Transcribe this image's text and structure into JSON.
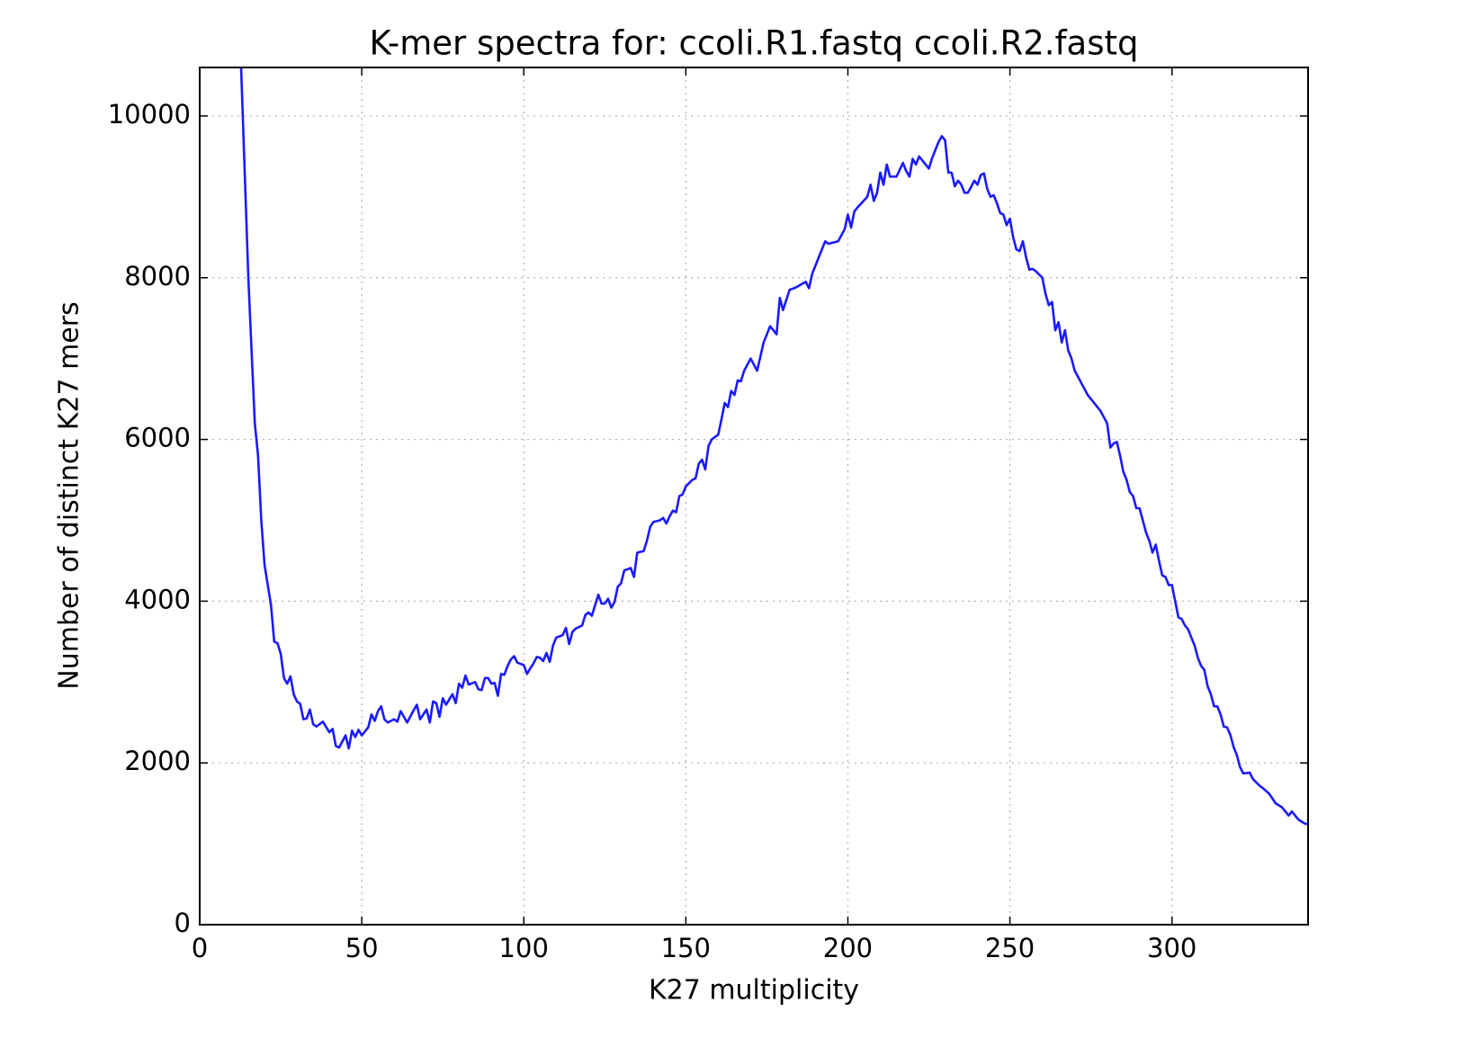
{
  "chart_data": {
    "type": "line",
    "title": "K-mer spectra for: ccoli.R1.fastq ccoli.R2.fastq",
    "x_label": "K27 multiplicity",
    "y_label": "Number of distinct K27 mers",
    "color": "#1a1aff",
    "grid": true,
    "xlim": [
      0,
      342
    ],
    "ylim": [
      0,
      10600
    ],
    "xticks": [
      0,
      50,
      100,
      150,
      200,
      250,
      300
    ],
    "yticks": [
      0,
      2000,
      4000,
      6000,
      8000,
      10000
    ],
    "x": [
      12,
      15,
      17,
      18,
      19,
      20,
      22,
      23,
      24,
      25,
      26,
      27,
      28,
      29,
      30,
      31,
      32,
      33,
      34,
      35,
      36,
      38,
      40,
      41,
      42,
      43,
      45,
      46,
      47,
      48,
      49,
      50,
      52,
      53,
      54,
      55,
      56,
      57,
      58,
      60,
      61,
      62,
      64,
      66,
      67,
      68,
      70,
      71,
      72,
      73,
      74,
      75,
      76,
      78,
      79,
      80,
      81,
      82,
      83,
      85,
      86,
      87,
      88,
      89,
      90,
      91,
      92,
      93,
      94,
      95,
      96,
      97,
      98,
      100,
      101,
      102,
      103,
      104,
      105,
      106,
      107,
      108,
      109,
      110,
      112,
      113,
      114,
      115,
      116,
      118,
      119,
      120,
      121,
      122,
      123,
      124,
      125,
      126,
      127,
      128,
      129,
      130,
      131,
      133,
      134,
      135,
      137,
      138,
      139,
      140,
      142,
      143,
      144,
      145,
      146,
      147,
      148,
      149,
      150,
      152,
      153,
      154,
      155,
      156,
      157,
      158,
      160,
      161,
      162,
      163,
      164,
      165,
      166,
      167,
      168,
      170,
      172,
      174,
      176,
      178,
      179,
      180,
      182,
      184,
      187,
      188,
      189,
      190,
      192,
      193,
      194,
      197,
      199,
      200,
      201,
      202,
      203,
      206,
      207,
      208,
      209,
      210,
      211,
      212,
      213,
      215,
      217,
      218,
      219,
      220,
      221,
      222,
      225,
      226,
      228,
      229,
      230,
      231,
      232,
      233,
      234,
      235,
      236,
      237,
      238,
      239,
      240,
      241,
      242,
      243,
      244,
      245,
      246,
      247,
      248,
      249,
      250,
      251,
      252,
      253,
      254,
      255,
      256,
      257,
      258,
      260,
      261,
      262,
      263,
      264,
      265,
      266,
      267,
      268,
      269,
      270,
      272,
      274,
      276,
      278,
      280,
      281,
      282,
      283,
      284,
      285,
      286,
      287,
      288,
      289,
      290,
      291,
      292,
      293,
      294,
      295,
      296,
      297,
      298,
      299,
      300,
      301,
      302,
      303,
      304,
      305,
      306,
      307,
      308,
      309,
      310,
      311,
      312,
      313,
      314,
      315,
      316,
      317,
      318,
      319,
      320,
      321,
      322,
      324,
      325,
      327,
      328,
      330,
      332,
      334,
      336,
      337,
      339,
      341,
      342
    ],
    "values": [
      11500,
      8000,
      6200,
      5800,
      5000,
      4450,
      3950,
      3500,
      3480,
      3350,
      3050,
      2980,
      3070,
      2850,
      2760,
      2730,
      2540,
      2550,
      2660,
      2480,
      2450,
      2510,
      2380,
      2420,
      2210,
      2190,
      2340,
      2180,
      2400,
      2320,
      2410,
      2340,
      2440,
      2600,
      2520,
      2640,
      2700,
      2540,
      2500,
      2540,
      2510,
      2640,
      2500,
      2650,
      2720,
      2540,
      2660,
      2500,
      2760,
      2740,
      2570,
      2800,
      2720,
      2850,
      2740,
      2980,
      2930,
      3080,
      2970,
      3000,
      2910,
      2900,
      3050,
      3050,
      2980,
      2990,
      2830,
      3100,
      3090,
      3200,
      3280,
      3320,
      3240,
      3210,
      3100,
      3170,
      3230,
      3310,
      3300,
      3260,
      3360,
      3250,
      3450,
      3550,
      3580,
      3670,
      3470,
      3620,
      3660,
      3700,
      3830,
      3860,
      3820,
      3950,
      4080,
      3970,
      3970,
      4030,
      3920,
      3990,
      4180,
      4220,
      4380,
      4410,
      4300,
      4600,
      4620,
      4750,
      4920,
      4980,
      5000,
      5030,
      4960,
      5050,
      5120,
      5100,
      5300,
      5320,
      5420,
      5500,
      5520,
      5700,
      5750,
      5630,
      5920,
      6000,
      6060,
      6250,
      6450,
      6400,
      6600,
      6550,
      6730,
      6720,
      6850,
      7000,
      6850,
      7200,
      7400,
      7300,
      7750,
      7600,
      7850,
      7880,
      7950,
      7870,
      8050,
      8150,
      8350,
      8450,
      8420,
      8450,
      8600,
      8780,
      8620,
      8820,
      8870,
      9000,
      9150,
      8950,
      9050,
      9300,
      9150,
      9400,
      9250,
      9250,
      9420,
      9320,
      9250,
      9470,
      9400,
      9500,
      9350,
      9480,
      9680,
      9750,
      9700,
      9300,
      9300,
      9130,
      9200,
      9150,
      9050,
      9050,
      9120,
      9200,
      9150,
      9270,
      9290,
      9100,
      9000,
      9020,
      8920,
      8800,
      8780,
      8650,
      8730,
      8500,
      8350,
      8330,
      8450,
      8250,
      8100,
      8110,
      8080,
      8000,
      7800,
      7660,
      7700,
      7350,
      7450,
      7200,
      7350,
      7100,
      7000,
      6850,
      6700,
      6550,
      6450,
      6350,
      6200,
      5900,
      5950,
      5970,
      5800,
      5600,
      5500,
      5350,
      5300,
      5150,
      5150,
      5000,
      4850,
      4750,
      4600,
      4700,
      4500,
      4320,
      4300,
      4200,
      4200,
      4000,
      3800,
      3780,
      3700,
      3650,
      3550,
      3450,
      3300,
      3200,
      3150,
      2950,
      2850,
      2700,
      2700,
      2600,
      2450,
      2440,
      2350,
      2200,
      2100,
      1950,
      1870,
      1880,
      1800,
      1720,
      1690,
      1620,
      1500,
      1450,
      1350,
      1400,
      1300,
      1250,
      1240
    ]
  }
}
